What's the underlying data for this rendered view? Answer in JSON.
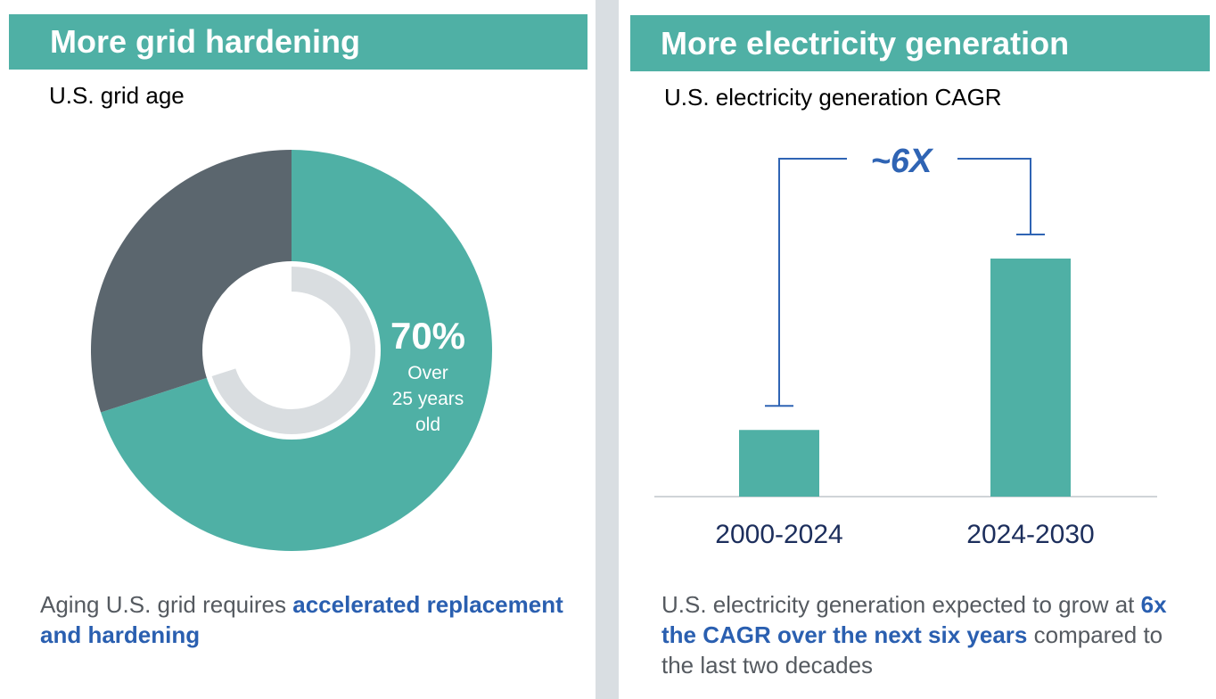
{
  "left_panel": {
    "banner": "More grid hardening",
    "subtitle": "U.S. grid age",
    "caption_plain": "Aging U.S. grid requires ",
    "caption_highlight": "accelerated replacement and hardening",
    "caption_after": ""
  },
  "right_panel": {
    "banner": "More electricity generation",
    "subtitle": "U.S. electricity generation CAGR",
    "caption_plain": "U.S. electricity generation expected to grow at ",
    "caption_highlight": "6x the CAGR over the next six years",
    "caption_after": " compared to the last two decades"
  },
  "colors": {
    "teal": "#4fb0a5",
    "slate": "#5b666e",
    "light_gray": "#d9dde0",
    "blue": "#2f64b4",
    "navy": "#1c2e5c"
  },
  "chart_data": [
    {
      "type": "pie",
      "subtype": "donut",
      "title": "U.S. grid age",
      "slices": [
        {
          "label": "Over 25 years old",
          "value": 70,
          "color": "#4fb0a5"
        },
        {
          "label": "",
          "value": 30,
          "color": "#5b666e"
        }
      ],
      "center_label": {
        "value": "70%",
        "text": [
          "Over",
          "25 years",
          "old"
        ]
      },
      "inner_ring_value": 70
    },
    {
      "type": "bar",
      "title": "U.S. electricity generation CAGR",
      "categories": [
        "2000-2024",
        "2024-2030"
      ],
      "values": [
        1,
        6
      ],
      "annotation": "~6X",
      "color": "#4fb0a5"
    }
  ]
}
